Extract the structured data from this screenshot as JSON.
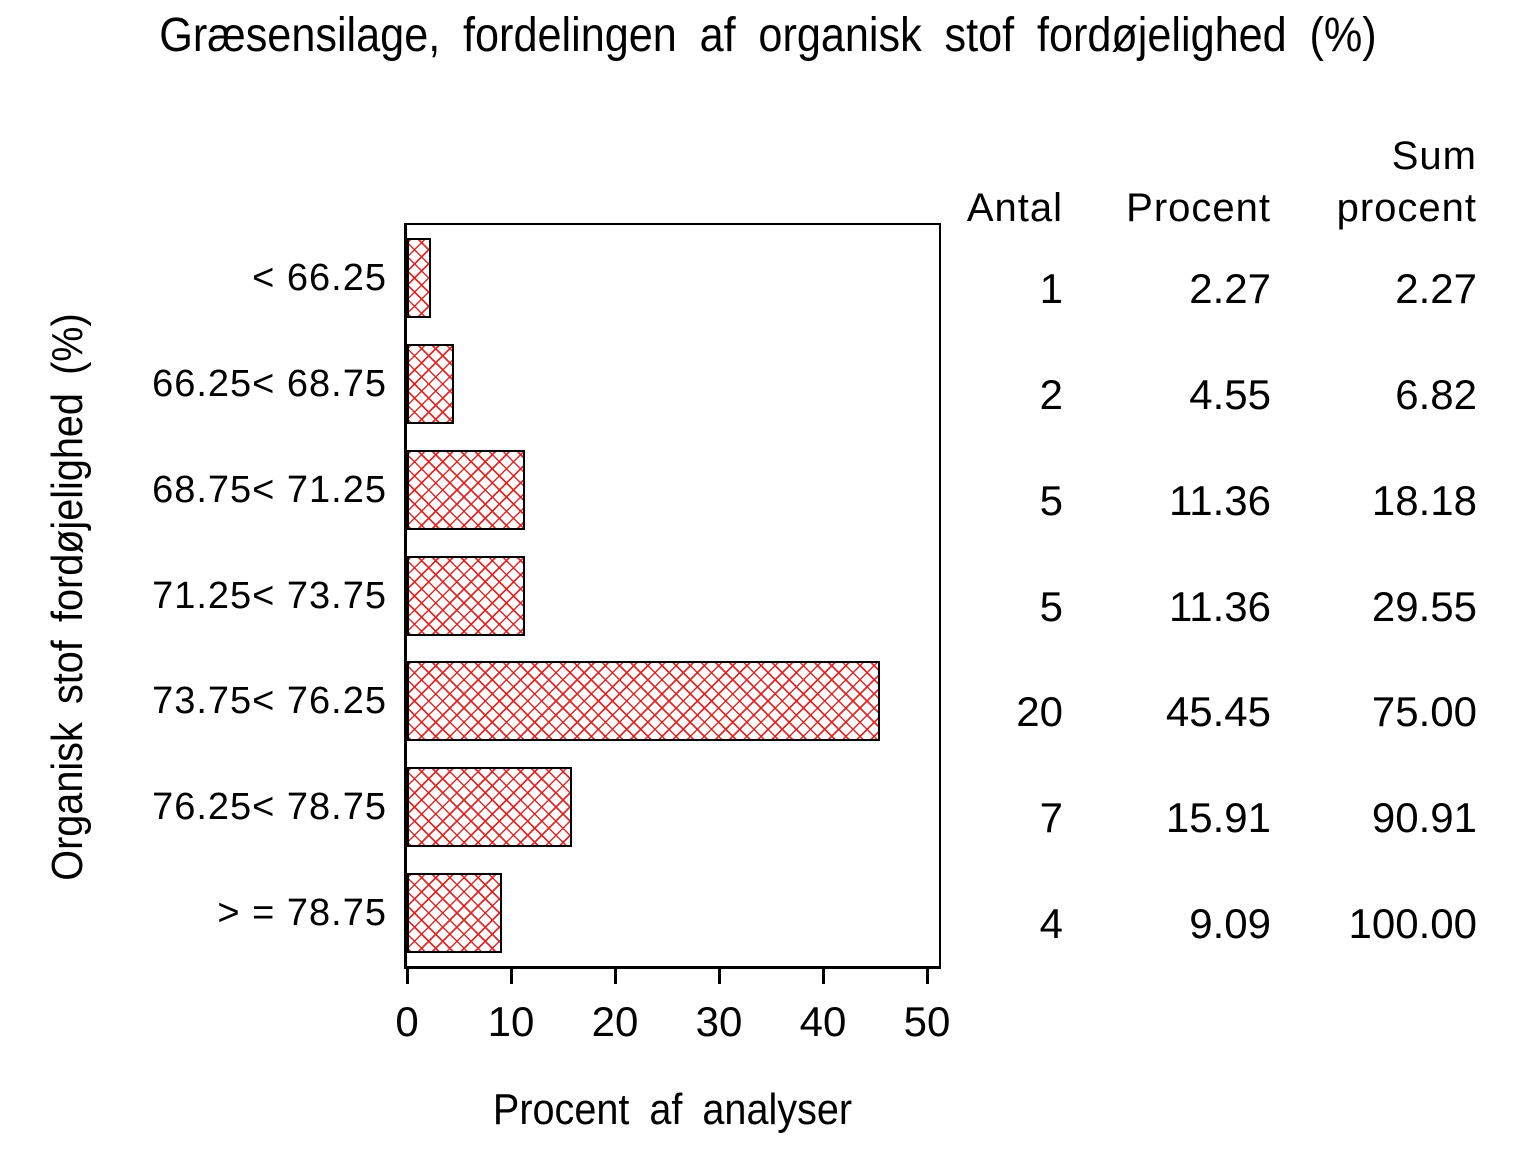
{
  "chart_data": {
    "type": "bar",
    "orientation": "horizontal",
    "title": "Græsensilage, fordelingen af organisk stof fordøjelighed (%)",
    "xlabel": "Procent af analyser",
    "ylabel": "Organisk stof fordøjelighed (%)",
    "categories": [
      "< 66.25",
      "66.25< 68.75",
      "68.75< 71.25",
      "71.25< 73.75",
      "73.75< 76.25",
      "76.25< 78.75",
      "> = 78.75"
    ],
    "series": [
      {
        "name": "Procent af analyser",
        "values": [
          2.27,
          4.55,
          11.36,
          11.36,
          45.45,
          15.91,
          9.09
        ]
      }
    ],
    "counts": [
      1,
      2,
      5,
      5,
      20,
      7,
      4
    ],
    "cumulative_percent": [
      2.27,
      6.82,
      18.18,
      29.55,
      75.0,
      90.91,
      100.0
    ],
    "xlim": [
      0,
      50
    ],
    "xticks": [
      "0",
      "10",
      "20",
      "30",
      "40",
      "50"
    ],
    "grid": false,
    "legend": "none",
    "bar_style": {
      "fill_pattern": "crosshatch",
      "pattern_color": "#e02020",
      "border_color": "#000000",
      "background": "#ffffff"
    }
  },
  "table": {
    "headers": {
      "antal": "Antal",
      "procent": "Procent",
      "sum_line1": "Sum",
      "sum_line2": "procent"
    },
    "rows": [
      {
        "antal": "1",
        "procent": "2.27",
        "sum": "2.27"
      },
      {
        "antal": "2",
        "procent": "4.55",
        "sum": "6.82"
      },
      {
        "antal": "5",
        "procent": "11.36",
        "sum": "18.18"
      },
      {
        "antal": "5",
        "procent": "11.36",
        "sum": "29.55"
      },
      {
        "antal": "20",
        "procent": "45.45",
        "sum": "75.00"
      },
      {
        "antal": "7",
        "procent": "15.91",
        "sum": "90.91"
      },
      {
        "antal": "4",
        "procent": "9.09",
        "sum": "100.00"
      }
    ]
  }
}
